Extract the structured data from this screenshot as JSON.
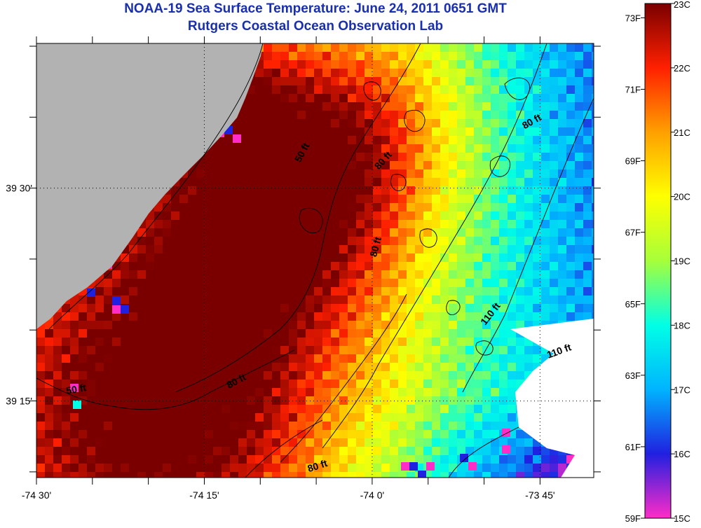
{
  "title": {
    "line1": "NOAA-19 Sea Surface Temperature:  June 24, 2011 0651 GMT",
    "line2": "Rutgers Coastal Ocean Observation Lab"
  },
  "axes": {
    "x_ticks": [
      {
        "lon": -74.5,
        "label": "-74 30'"
      },
      {
        "lon": -74.25,
        "label": "-74 15'"
      },
      {
        "lon": -74.0,
        "label": "-74 0'"
      },
      {
        "lon": -73.75,
        "label": "-73 45'"
      }
    ],
    "y_ticks": [
      {
        "lat": 39.5,
        "label": "39 30'"
      },
      {
        "lat": 39.25,
        "label": "39 15'"
      }
    ],
    "lon_range": [
      -74.5,
      -73.67
    ],
    "lat_range": [
      39.16,
      39.67
    ]
  },
  "contour_labels": [
    {
      "text": "50 ft",
      "lon": -74.1,
      "lat": 39.54,
      "rotate": -62
    },
    {
      "text": "80 ft",
      "lon": -73.98,
      "lat": 39.53,
      "rotate": -48
    },
    {
      "text": "80 ft",
      "lon": -73.76,
      "lat": 39.575,
      "rotate": -30
    },
    {
      "text": "80 ft",
      "lon": -73.99,
      "lat": 39.43,
      "rotate": -75
    },
    {
      "text": "110 ft",
      "lon": -73.82,
      "lat": 39.35,
      "rotate": -52
    },
    {
      "text": "110 ft",
      "lon": -73.72,
      "lat": 39.305,
      "rotate": -20
    },
    {
      "text": "80 ft",
      "lon": -74.2,
      "lat": 39.27,
      "rotate": -28
    },
    {
      "text": "50 ft",
      "lon": -74.44,
      "lat": 39.26,
      "rotate": -10
    },
    {
      "text": "80 ft",
      "lon": -74.08,
      "lat": 39.17,
      "rotate": -18
    }
  ],
  "colorbar": {
    "celsius_labels": [
      "23C",
      "22C",
      "21C",
      "20C",
      "19C",
      "18C",
      "17C",
      "16C",
      "15C"
    ],
    "fahrenheit_labels": [
      "73F",
      "71F",
      "69F",
      "67F",
      "65F",
      "63F",
      "61F",
      "59F"
    ],
    "celsius_range": [
      15,
      23
    ],
    "fahrenheit_range": [
      59,
      73.4
    ],
    "colors": [
      "#ff2cc8",
      "#2020e0",
      "#00b4ff",
      "#00ffe6",
      "#a6ff3a",
      "#ffff00",
      "#ffa000",
      "#ff2000",
      "#7a0000"
    ]
  },
  "colors": {
    "land": "#b2b2b2",
    "no_data": "#ffffff"
  }
}
